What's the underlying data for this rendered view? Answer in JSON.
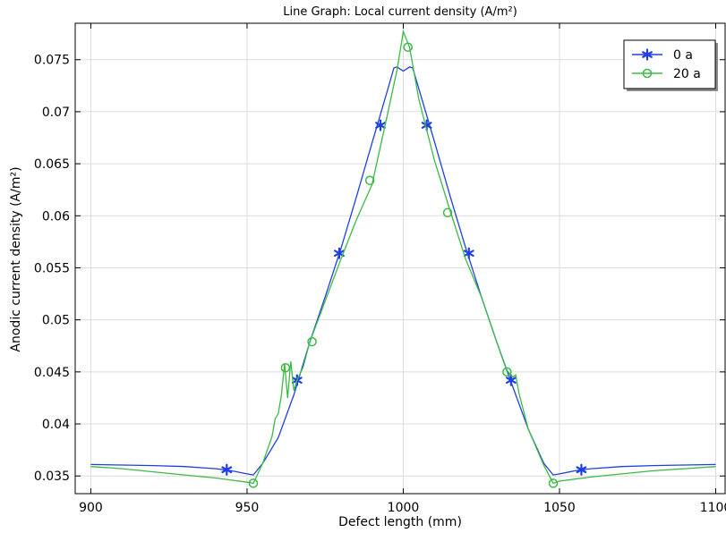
{
  "chart_data": {
    "type": "line",
    "title": "Line Graph: Local current density (A/m²)",
    "xlabel": "Defect length (mm)",
    "ylabel": "Anodic current density (A/m²)",
    "xlim": [
      895,
      1103
    ],
    "ylim": [
      0.0333,
      0.0785
    ],
    "x_ticks": [
      900,
      950,
      1000,
      1050,
      1100
    ],
    "y_ticks": [
      0.035,
      0.04,
      0.045,
      0.05,
      0.055,
      0.06,
      0.065,
      0.07,
      0.075
    ],
    "x_tick_labels": [
      "900",
      "950",
      "1000",
      "1050",
      "1100"
    ],
    "y_tick_labels": [
      "0.035",
      "0.04",
      "0.045",
      "0.05",
      "0.055",
      "0.06",
      "0.065",
      "0.07",
      "0.075"
    ],
    "grid": true,
    "legend_position": "top-right",
    "series": [
      {
        "name": "0 a",
        "color": "#1f3fe0",
        "marker": "asterisk",
        "x": [
          900,
          910,
          920,
          930,
          940,
          945,
          950,
          952,
          955,
          960,
          965,
          970,
          975,
          980,
          985,
          990,
          995,
          997,
          998,
          1000,
          1002,
          1003,
          1005,
          1010,
          1015,
          1020,
          1025,
          1030,
          1035,
          1040,
          1045,
          1048,
          1050,
          1055,
          1060,
          1070,
          1080,
          1090,
          1100
        ],
        "y": [
          0.0361,
          0.03605,
          0.036,
          0.0359,
          0.0357,
          0.0355,
          0.0352,
          0.0351,
          0.0362,
          0.0387,
          0.0428,
          0.0478,
          0.0522,
          0.0568,
          0.0618,
          0.067,
          0.0721,
          0.0742,
          0.0743,
          0.0739,
          0.0743,
          0.0742,
          0.0722,
          0.0671,
          0.0619,
          0.0569,
          0.0522,
          0.0478,
          0.0436,
          0.0395,
          0.0362,
          0.0351,
          0.0352,
          0.0355,
          0.0357,
          0.0359,
          0.036,
          0.03605,
          0.0361
        ],
        "marker_x": [
          943.5,
          966,
          979.5,
          992.7,
          1007.5,
          1021,
          1034.5,
          1057
        ],
        "marker_y": [
          0.0356,
          0.0442,
          0.0564,
          0.0687,
          0.0687,
          0.0564,
          0.0442,
          0.0356
        ]
      },
      {
        "name": "20 a",
        "color": "#3cba45",
        "marker": "circle",
        "x": [
          900,
          910,
          920,
          930,
          940,
          950,
          952,
          955,
          958,
          959,
          960,
          961,
          962,
          963,
          964,
          965,
          966,
          968,
          970,
          975,
          980,
          985,
          990,
          995,
          998,
          1000,
          1002,
          1005,
          1010,
          1015,
          1020,
          1025,
          1030,
          1033,
          1035,
          1036,
          1037,
          1040,
          1045,
          1048,
          1050,
          1060,
          1070,
          1080,
          1090,
          1100
        ],
        "y": [
          0.0359,
          0.0357,
          0.0354,
          0.0351,
          0.0348,
          0.0344,
          0.0343,
          0.0362,
          0.0388,
          0.0405,
          0.041,
          0.0428,
          0.0458,
          0.0425,
          0.046,
          0.0432,
          0.0442,
          0.0455,
          0.0478,
          0.0518,
          0.0558,
          0.0596,
          0.063,
          0.0698,
          0.074,
          0.0777,
          0.0762,
          0.0712,
          0.0653,
          0.0605,
          0.0558,
          0.0522,
          0.0478,
          0.0452,
          0.0445,
          0.0447,
          0.043,
          0.0395,
          0.036,
          0.0343,
          0.0345,
          0.0349,
          0.0352,
          0.0355,
          0.0357,
          0.0359
        ],
        "marker_x": [
          952,
          962.3,
          970.8,
          989.3,
          1001.5,
          1014.2,
          1033.2,
          1048
        ],
        "marker_y": [
          0.0343,
          0.0454,
          0.0479,
          0.0634,
          0.0762,
          0.0603,
          0.045,
          0.0343
        ]
      }
    ]
  }
}
